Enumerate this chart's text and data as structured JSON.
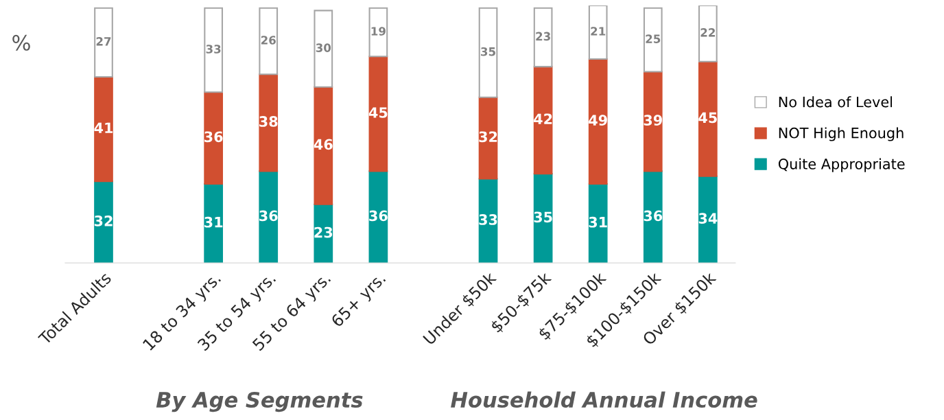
{
  "chart_data": {
    "type": "bar",
    "stacked": true,
    "ylabel": "%",
    "categories": [
      "Total Adults",
      null,
      "18 to 34 yrs.",
      "35 to 54 yrs.",
      "55 to 64 yrs.",
      "65+ yrs.",
      null,
      "Under $50k",
      "$50-$75k",
      "$75-$100k",
      "$100-$150k",
      "Over $150k"
    ],
    "series": [
      {
        "name": "Quite Appropriate",
        "color": "#009a97",
        "values": [
          32,
          null,
          31,
          36,
          23,
          36,
          null,
          33,
          35,
          31,
          36,
          34
        ]
      },
      {
        "name": "NOT High Enough",
        "color": "#d14f30",
        "values": [
          41,
          null,
          36,
          38,
          46,
          45,
          null,
          32,
          42,
          49,
          39,
          45
        ]
      },
      {
        "name": "No Idea of Level",
        "color": "#ffffff",
        "values": [
          27,
          null,
          33,
          26,
          30,
          19,
          null,
          35,
          23,
          21,
          25,
          22
        ]
      }
    ],
    "ylim": [
      0,
      101
    ],
    "tick_labels": "x",
    "data_labels": true,
    "legend": "right",
    "grid": false,
    "annotations": [
      "By Age Segments",
      "Household Annual Income"
    ]
  }
}
